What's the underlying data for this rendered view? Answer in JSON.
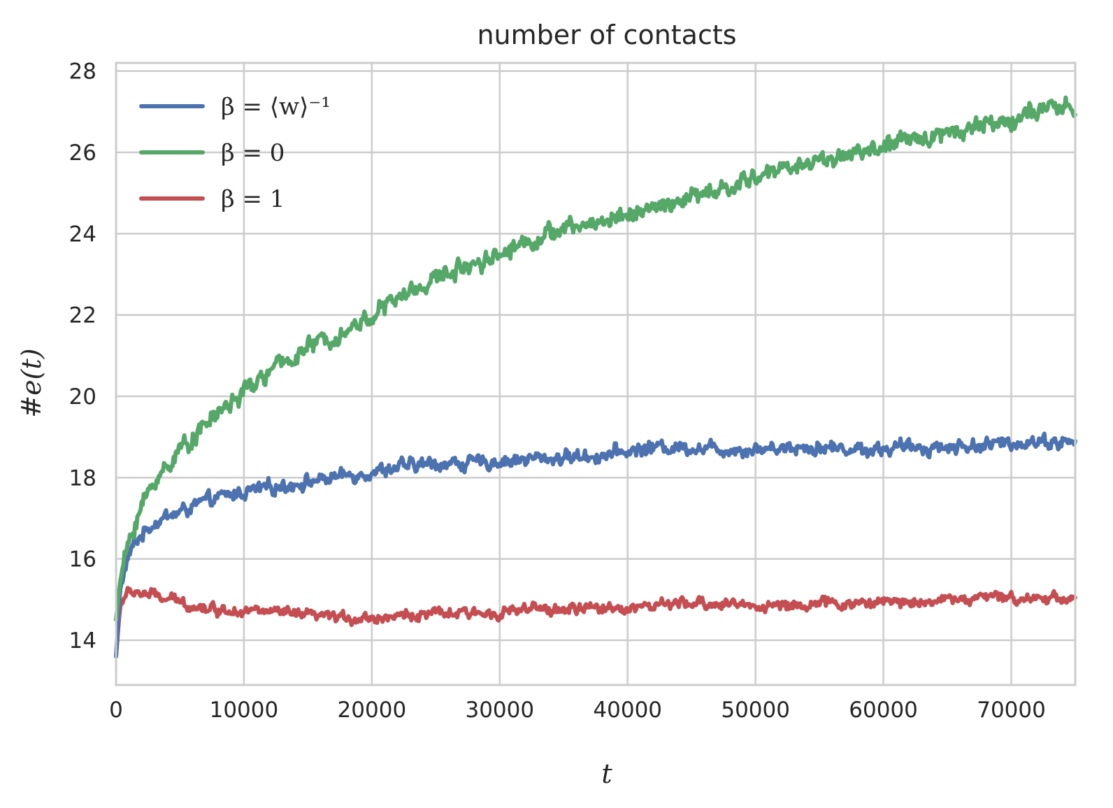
{
  "chart_data": {
    "type": "line",
    "title": "number of contacts",
    "xlabel": "t",
    "ylabel": "#e(t)",
    "xlim": [
      0,
      75000
    ],
    "ylim": [
      12.9,
      28.2
    ],
    "xticks": [
      0,
      10000,
      20000,
      30000,
      40000,
      50000,
      60000,
      70000
    ],
    "xtick_labels": [
      "0",
      "10000",
      "20000",
      "30000",
      "40000",
      "50000",
      "60000",
      "70000"
    ],
    "yticks": [
      14,
      16,
      18,
      20,
      22,
      24,
      26,
      28
    ],
    "ytick_labels": [
      "14",
      "16",
      "18",
      "20",
      "22",
      "24",
      "26",
      "28"
    ],
    "grid": true,
    "legend": "upper-left",
    "series": [
      {
        "name": "β = ⟨w⟩⁻¹",
        "color": "#4c72b0",
        "x": [
          0,
          300,
          600,
          1000,
          1500,
          2000,
          3000,
          4000,
          5000,
          6000,
          8000,
          10000,
          12000,
          15000,
          18000,
          20000,
          22000,
          25000,
          28000,
          30000,
          32000,
          35000,
          38000,
          40000,
          42000,
          45000,
          48000,
          50000,
          52000,
          55000,
          58000,
          60000,
          62000,
          65000,
          68000,
          70000,
          72000,
          75000
        ],
        "y": [
          13.6,
          15.2,
          15.7,
          16.1,
          16.4,
          16.6,
          16.9,
          17.05,
          17.15,
          17.3,
          17.5,
          17.65,
          17.75,
          17.9,
          18.05,
          18.15,
          18.25,
          18.35,
          18.35,
          18.4,
          18.45,
          18.5,
          18.55,
          18.65,
          18.75,
          18.75,
          18.7,
          18.7,
          18.75,
          18.75,
          18.7,
          18.7,
          18.75,
          18.75,
          18.8,
          18.85,
          18.9,
          18.85
        ]
      },
      {
        "name": "β = 0",
        "color": "#55a868",
        "x": [
          0,
          300,
          600,
          1000,
          1500,
          2000,
          3000,
          4000,
          5000,
          6000,
          8000,
          10000,
          12000,
          15000,
          18000,
          20000,
          22000,
          25000,
          28000,
          30000,
          32000,
          35000,
          38000,
          40000,
          42000,
          45000,
          48000,
          50000,
          52000,
          55000,
          58000,
          60000,
          62000,
          65000,
          68000,
          70000,
          72000,
          75000
        ],
        "y": [
          14.5,
          15.4,
          15.9,
          16.4,
          16.9,
          17.3,
          17.9,
          18.3,
          18.7,
          19.0,
          19.6,
          20.1,
          20.6,
          21.2,
          21.6,
          22.0,
          22.4,
          22.9,
          23.3,
          23.5,
          23.8,
          24.1,
          24.3,
          24.5,
          24.6,
          24.9,
          25.1,
          25.4,
          25.6,
          25.8,
          26.0,
          26.1,
          26.3,
          26.5,
          26.7,
          26.8,
          27.0,
          27.1
        ]
      },
      {
        "name": "β = 1",
        "color": "#c44e52",
        "x": [
          0,
          300,
          600,
          1000,
          1500,
          2000,
          3000,
          4000,
          5000,
          6000,
          8000,
          10000,
          12000,
          15000,
          18000,
          20000,
          22000,
          25000,
          28000,
          30000,
          32000,
          35000,
          38000,
          40000,
          42000,
          45000,
          48000,
          50000,
          52000,
          55000,
          58000,
          60000,
          62000,
          65000,
          68000,
          70000,
          72000,
          75000
        ],
        "y": [
          13.6,
          14.8,
          15.05,
          15.15,
          15.2,
          15.15,
          15.1,
          15.0,
          14.95,
          14.85,
          14.75,
          14.75,
          14.7,
          14.6,
          14.55,
          14.55,
          14.6,
          14.65,
          14.65,
          14.7,
          14.75,
          14.75,
          14.8,
          14.8,
          14.85,
          14.9,
          14.9,
          14.85,
          14.85,
          14.9,
          14.9,
          14.95,
          14.95,
          15.0,
          15.05,
          15.05,
          15.05,
          15.05
        ]
      }
    ]
  }
}
